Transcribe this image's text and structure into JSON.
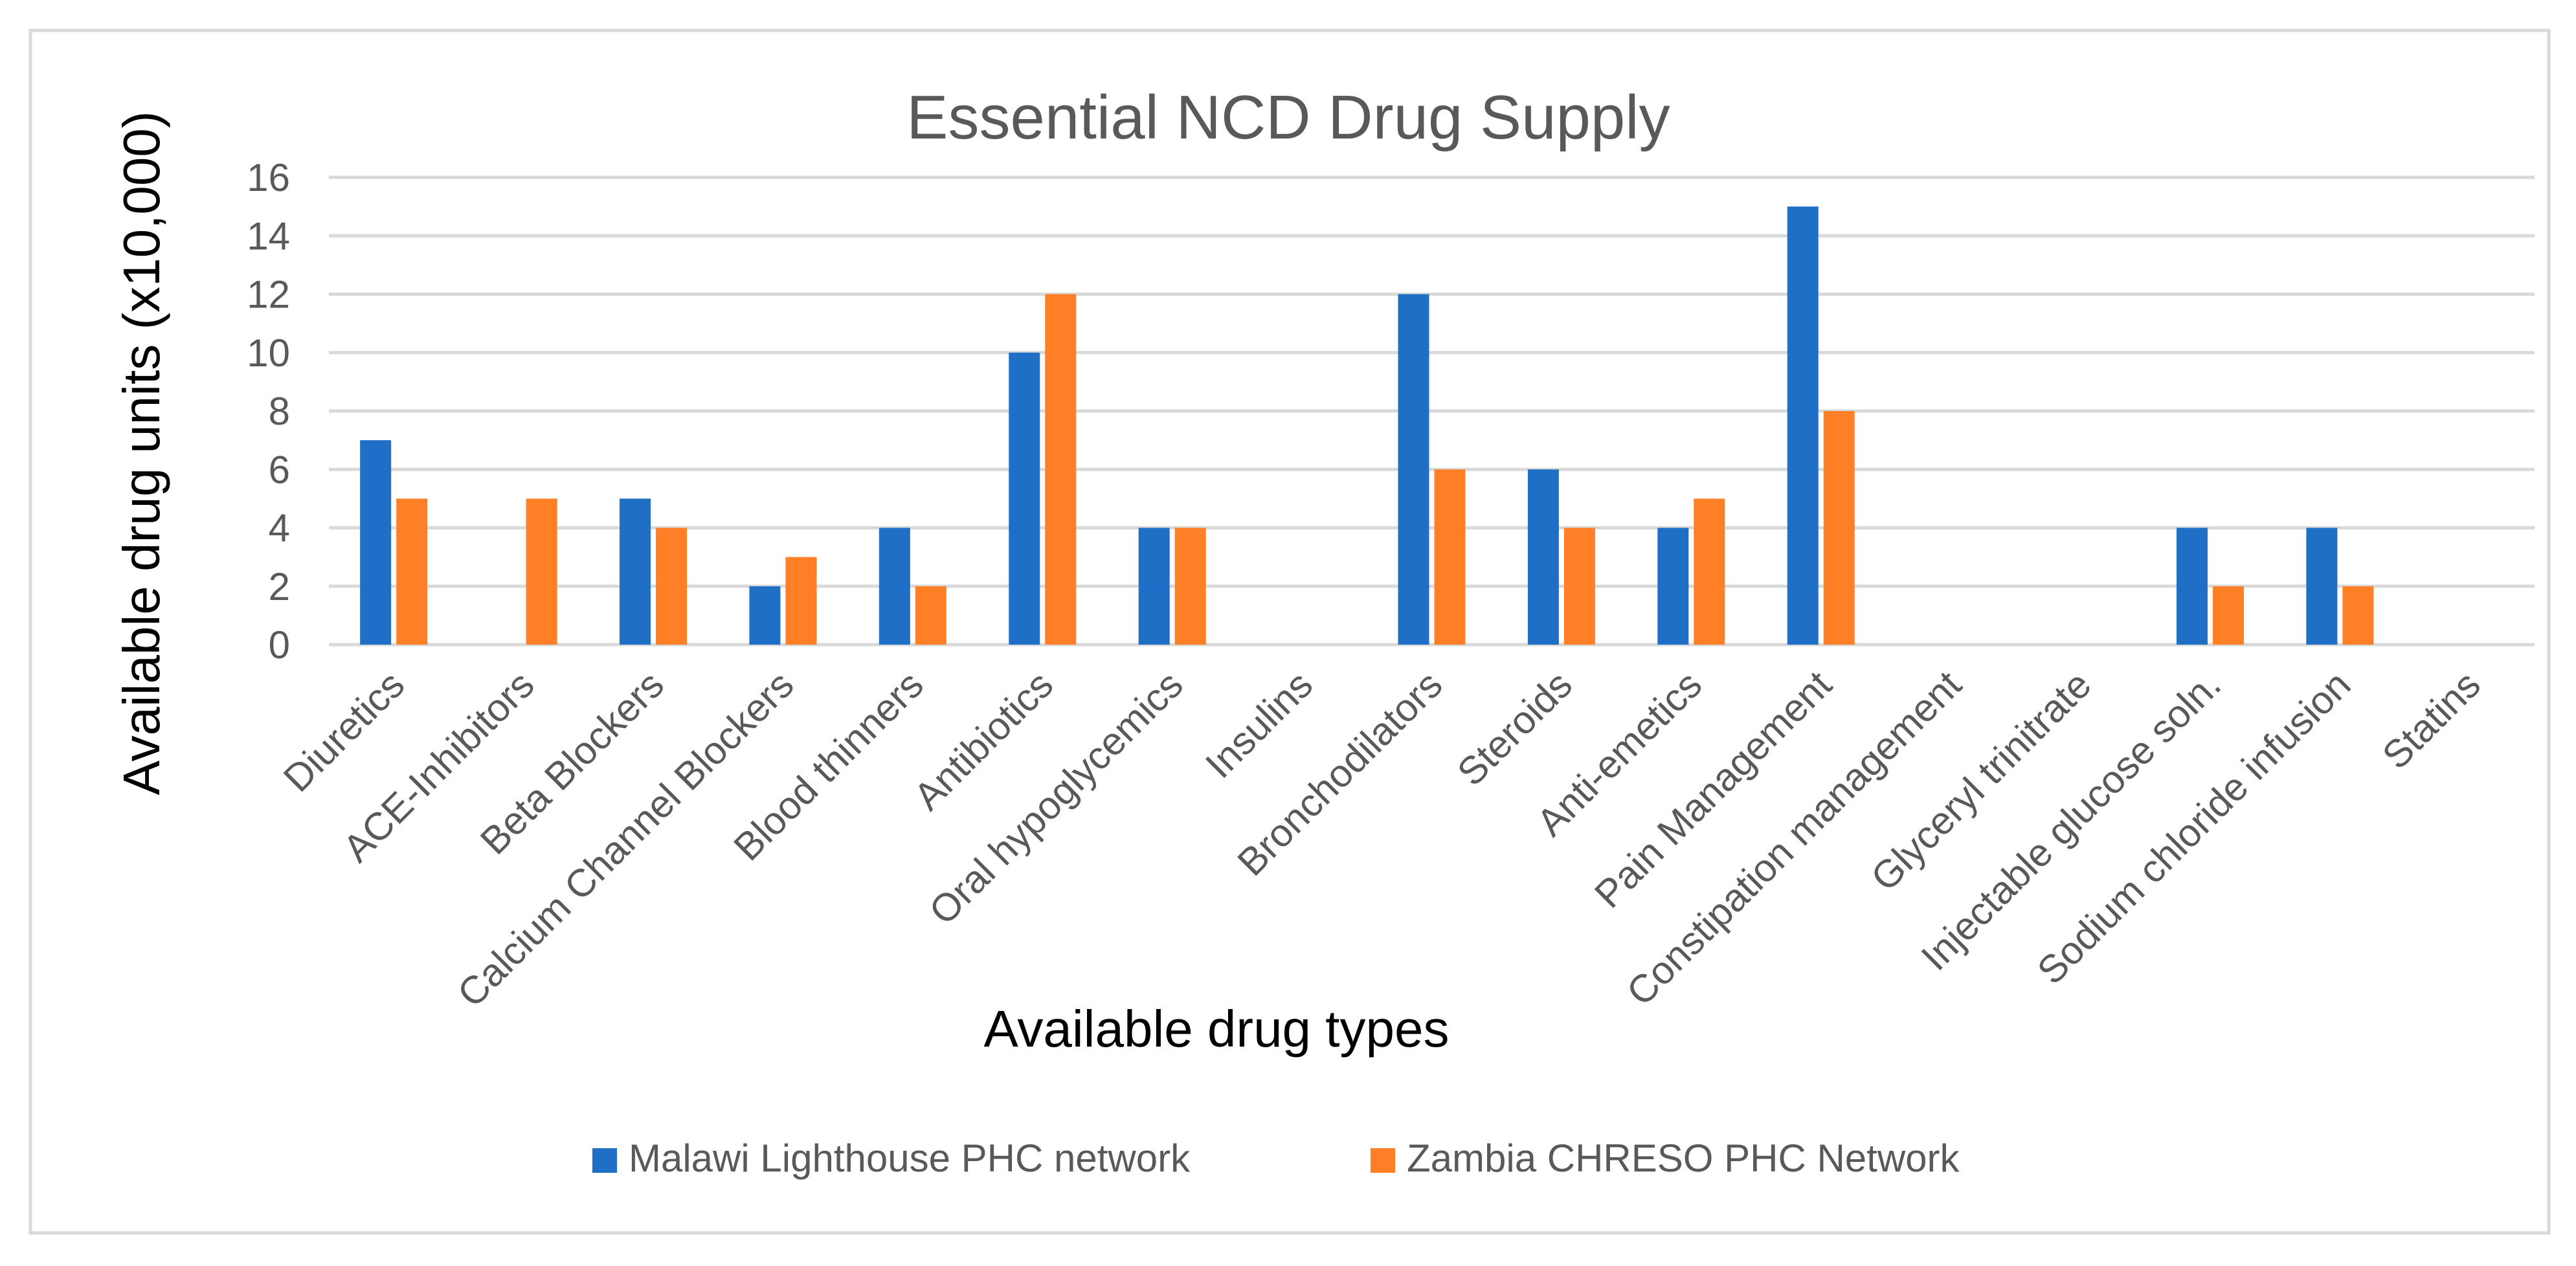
{
  "chart_data": {
    "type": "bar",
    "title": "Essential NCD Drug Supply",
    "xlabel": "Available drug types",
    "ylabel": "Available drug units (x10,000)",
    "ylim": [
      0,
      16
    ],
    "ytick_step": 2,
    "yticks": [
      "0",
      "2",
      "4",
      "6",
      "8",
      "10",
      "12",
      "14",
      "16"
    ],
    "grid": true,
    "legend_position": "bottom",
    "categories": [
      "Diuretics",
      "ACE-Inhibitors",
      "Beta Blockers",
      "Calcium Channel Blockers",
      "Blood thinners",
      "Antibiotics",
      "Oral hypoglycemics",
      "Insulins",
      "Bronchodilators",
      "Steroids",
      "Anti-emetics",
      "Pain Management",
      "Constipation management",
      "Glyceryl trinitrate",
      "Injectable glucose soln.",
      "Sodium chloride infusion",
      "Statins"
    ],
    "series": [
      {
        "name": "Malawi Lighthouse PHC network",
        "color": "#1F6FC6",
        "values": [
          7,
          0,
          5,
          2,
          4,
          10,
          4,
          0,
          12,
          6,
          4,
          15,
          0,
          0,
          4,
          4,
          0
        ]
      },
      {
        "name": "Zambia CHRESO PHC Network",
        "color": "#FF7F27",
        "values": [
          5,
          5,
          4,
          3,
          2,
          12,
          4,
          0,
          6,
          4,
          5,
          8,
          0,
          0,
          2,
          2,
          0
        ]
      }
    ]
  }
}
